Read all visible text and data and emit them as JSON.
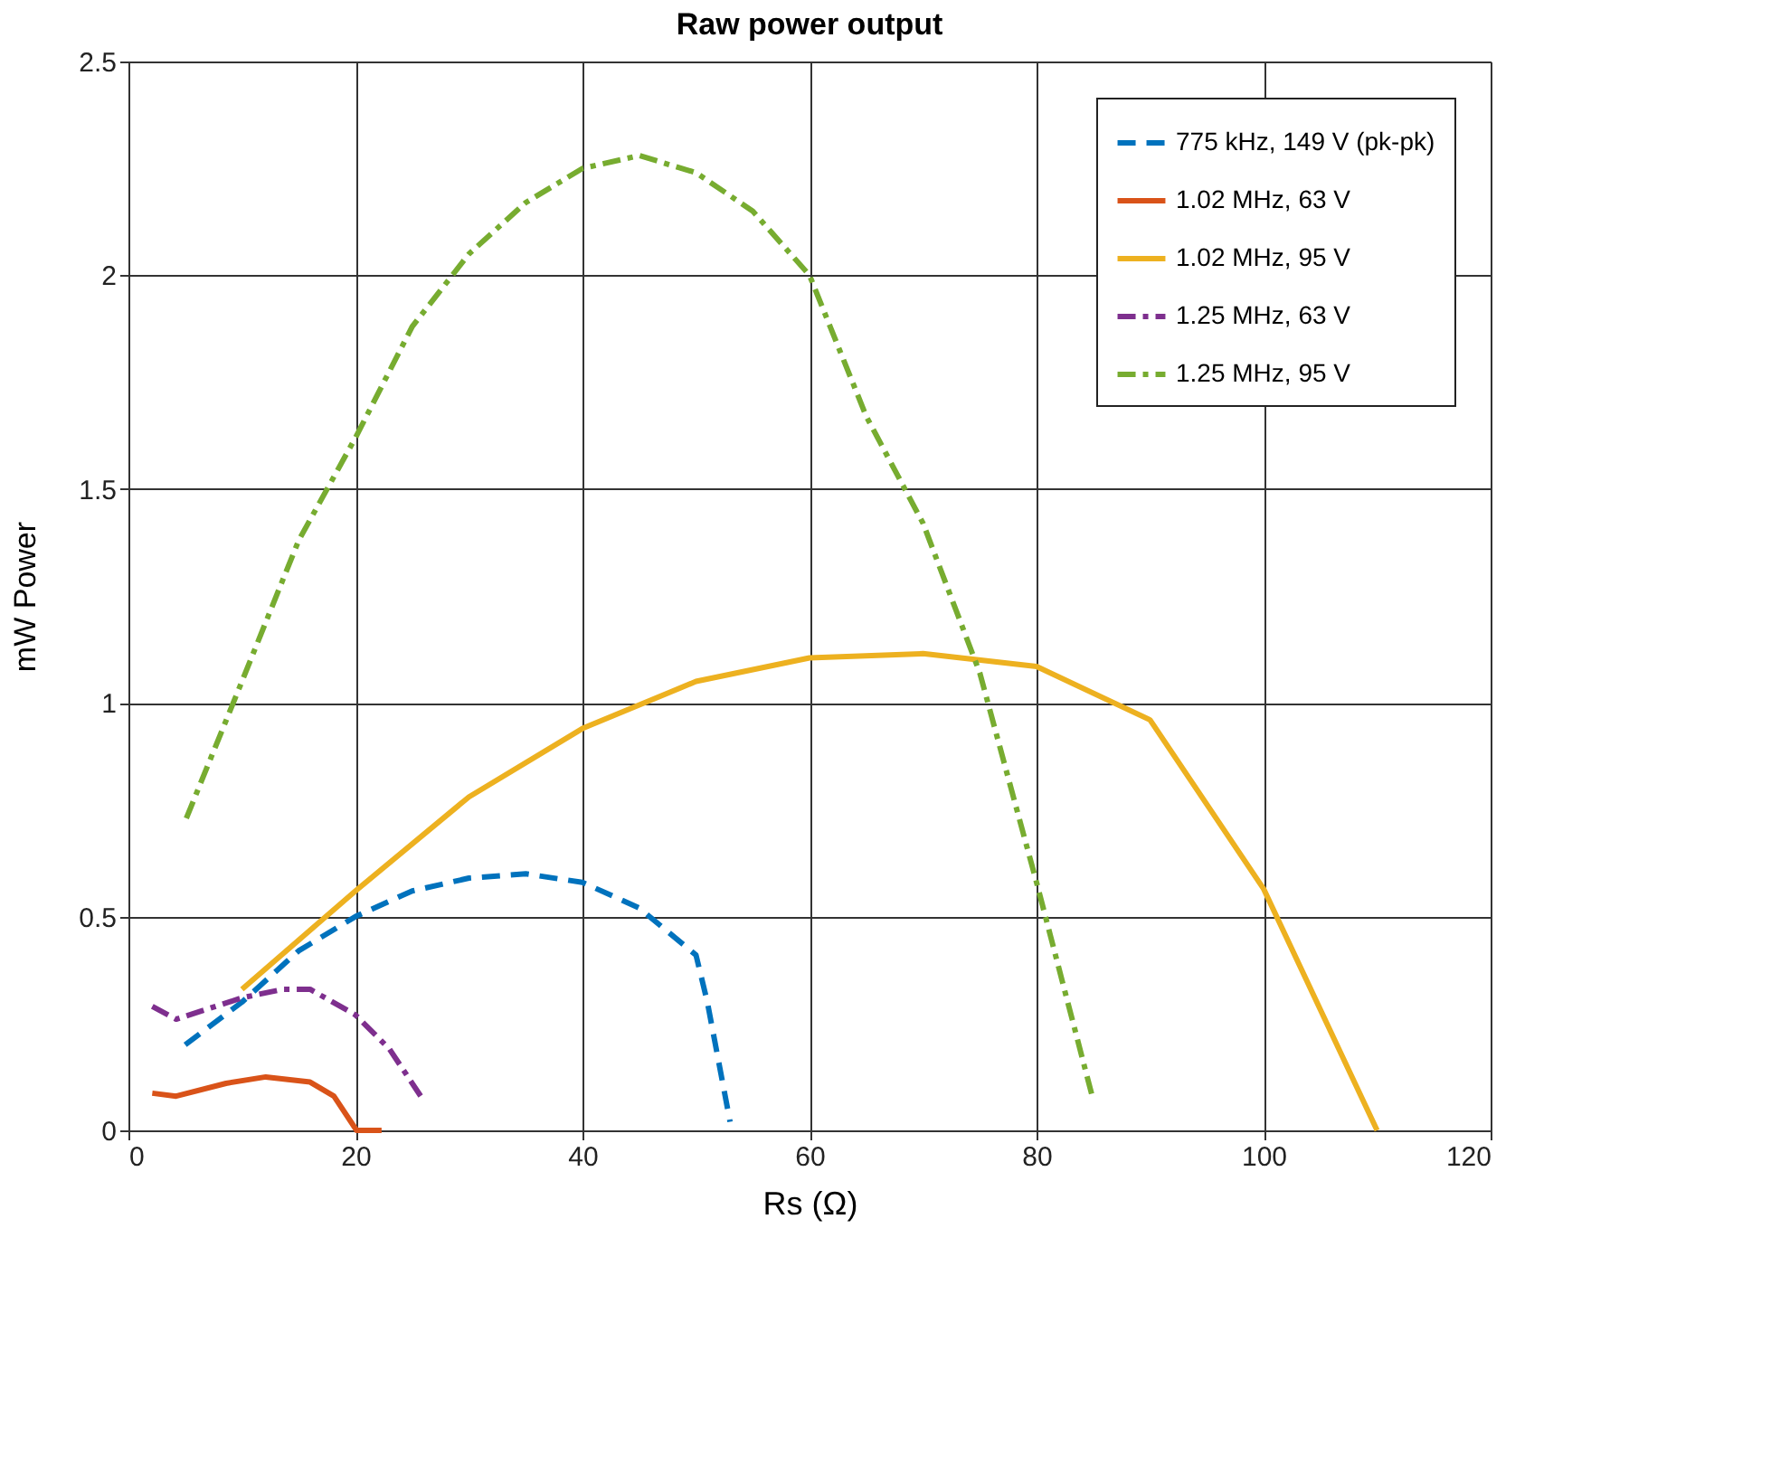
{
  "chart_data": {
    "type": "line",
    "title": "Raw power output",
    "xlabel": "Rs (Ω)",
    "ylabel": "mW Power",
    "xlim": [
      0,
      120
    ],
    "xticks": [
      0,
      20,
      40,
      60,
      80,
      100,
      120
    ],
    "ylim": [
      0,
      2.5
    ],
    "yticks": [
      0,
      0.5,
      1,
      1.5,
      2,
      2.5
    ],
    "grid": true,
    "legend": "top right",
    "marker": "none",
    "series": [
      {
        "name": "775 kHz, 149 V (pk-pk)",
        "color": "#0072bd",
        "line_style": "dashed",
        "x": [
          5,
          10,
          15,
          20,
          25,
          30,
          35,
          40,
          45,
          50,
          51,
          53
        ],
        "values": [
          0.2,
          0.3,
          0.42,
          0.5,
          0.56,
          0.59,
          0.6,
          0.58,
          0.52,
          0.41,
          0.3,
          0.02
        ]
      },
      {
        "name": "1.02 MHz, 63 V",
        "color": "#d95319",
        "line_style": "solid",
        "x": [
          2.1,
          4.2,
          8.6,
          12.1,
          16,
          18.1,
          20.1,
          22.3
        ],
        "values": [
          0.087,
          0.08,
          0.11,
          0.125,
          0.113,
          0.08,
          0,
          0
        ]
      },
      {
        "name": "1.02 MHz, 95 V",
        "color": "#edb120",
        "line_style": "solid",
        "x": [
          10,
          20,
          30,
          40,
          50,
          60,
          70,
          80,
          90,
          100,
          110
        ],
        "values": [
          0.33,
          0.56,
          0.78,
          0.94,
          1.05,
          1.105,
          1.115,
          1.085,
          0.96,
          0.565,
          0
        ]
      },
      {
        "name": "1.25 MHz, 63 V",
        "color": "#7e2f8e",
        "line_style": "dashdot",
        "x": [
          2.1,
          4.2,
          10,
          13.6,
          16,
          20,
          23,
          26
        ],
        "values": [
          0.29,
          0.26,
          0.31,
          0.33,
          0.33,
          0.27,
          0.19,
          0.07
        ]
      },
      {
        "name": "1.25 MHz, 95 V",
        "color": "#77ac30",
        "line_style": "dashdot",
        "x": [
          5.1,
          10,
          15,
          20,
          25,
          30,
          35,
          40,
          45,
          50,
          55,
          60,
          65,
          70,
          75,
          80,
          85
        ],
        "values": [
          0.73,
          1.05,
          1.38,
          1.62,
          1.88,
          2.05,
          2.17,
          2.25,
          2.28,
          2.24,
          2.15,
          2.0,
          1.67,
          1.42,
          1.07,
          0.58,
          0.07
        ]
      }
    ]
  }
}
